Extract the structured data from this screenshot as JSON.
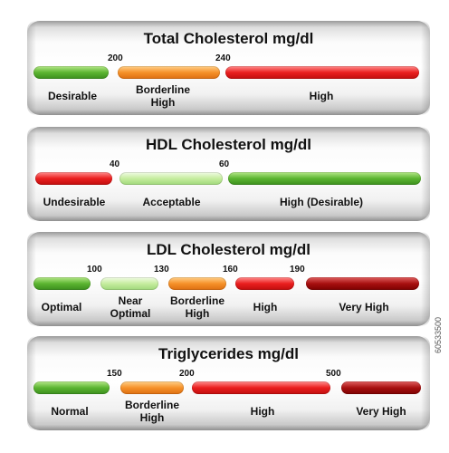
{
  "panels": [
    {
      "title": "Total Cholesterol mg/dl",
      "thresholds": [
        "200",
        "240"
      ],
      "segments": [
        {
          "label": "Desirable",
          "color": "green"
        },
        {
          "label": "Borderline High",
          "color": "orange"
        },
        {
          "label": "High",
          "color": "red"
        }
      ]
    },
    {
      "title": "HDL Cholesterol mg/dl",
      "thresholds": [
        "40",
        "60"
      ],
      "segments": [
        {
          "label": "Undesirable",
          "color": "red"
        },
        {
          "label": "Acceptable",
          "color": "light-green"
        },
        {
          "label": "High (Desirable)",
          "color": "green"
        }
      ]
    },
    {
      "title": "LDL Cholesterol mg/dl",
      "thresholds": [
        "100",
        "130",
        "160",
        "190"
      ],
      "segments": [
        {
          "label": "Optimal",
          "color": "green"
        },
        {
          "label": "Near Optimal",
          "color": "light-green"
        },
        {
          "label": "Borderline High",
          "color": "orange"
        },
        {
          "label": "High",
          "color": "red"
        },
        {
          "label": "Very High",
          "color": "dark-red"
        }
      ]
    },
    {
      "title": "Triglycerides mg/dl",
      "thresholds": [
        "150",
        "200",
        "500"
      ],
      "segments": [
        {
          "label": "Normal",
          "color": "green"
        },
        {
          "label": "Borderline High",
          "color": "orange"
        },
        {
          "label": "High",
          "color": "red"
        },
        {
          "label": "Very High",
          "color": "dark-red"
        }
      ]
    }
  ],
  "stock_id": "60533500"
}
